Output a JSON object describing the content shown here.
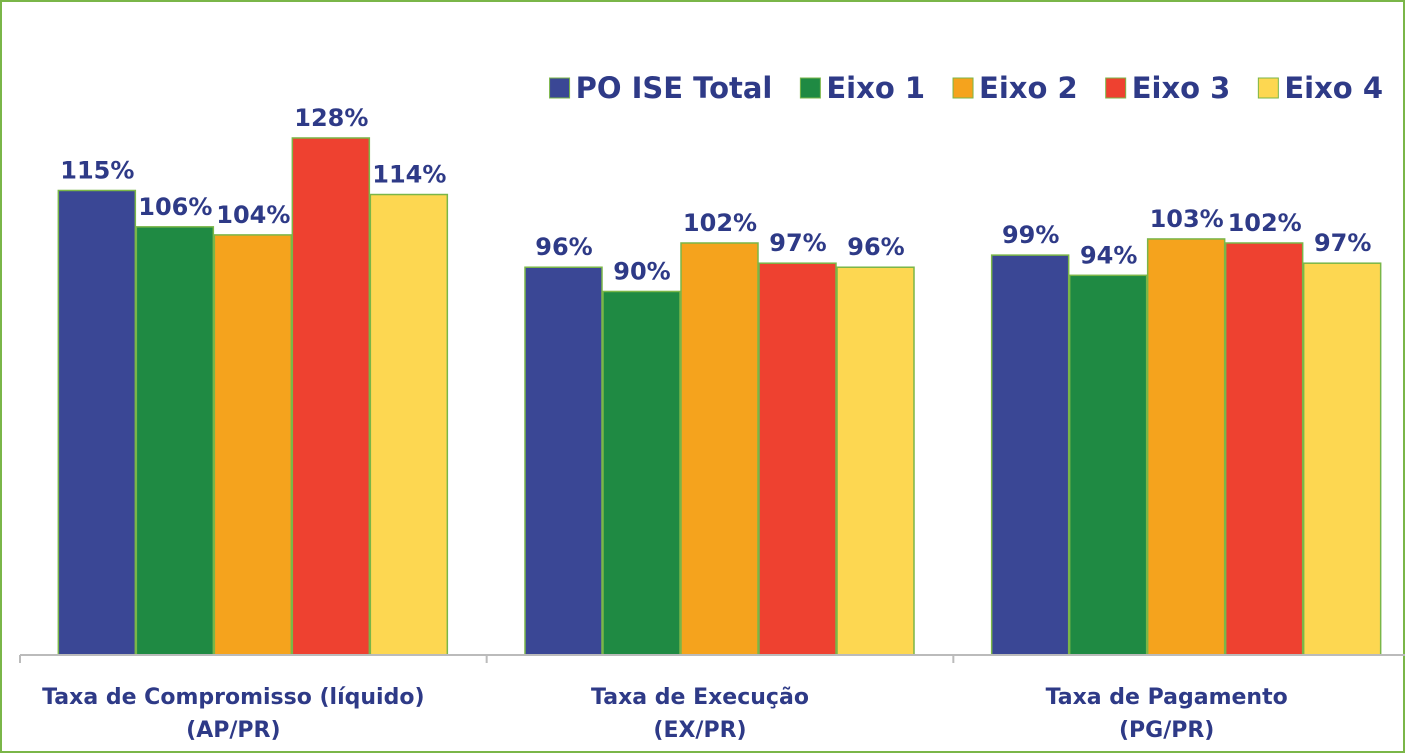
{
  "chart_data": {
    "type": "bar",
    "categories": [
      [
        "Taxa de Compromisso (líquido)",
        "(AP/PR)"
      ],
      [
        "Taxa de Execução",
        "(EX/PR)"
      ],
      [
        "Taxa de Pagamento",
        "(PG/PR)"
      ]
    ],
    "series": [
      {
        "name": "PO ISE Total",
        "color": "#3a4795",
        "values": [
          115,
          96,
          99
        ],
        "value_labels": [
          "115%",
          "96%",
          "99%"
        ]
      },
      {
        "name": "Eixo 1",
        "color": "#1f8a43",
        "values": [
          106,
          90,
          94
        ],
        "value_labels": [
          "106%",
          "90%",
          "94%"
        ]
      },
      {
        "name": "Eixo 2",
        "color": "#f5a31d",
        "values": [
          104,
          102,
          103
        ],
        "value_labels": [
          "104%",
          "102%",
          "103%"
        ]
      },
      {
        "name": "Eixo 3",
        "color": "#ee4130",
        "values": [
          128,
          97,
          102
        ],
        "value_labels": [
          "128%",
          "97%",
          "102%"
        ]
      },
      {
        "name": "Eixo 4",
        "color": "#fdd751",
        "values": [
          114,
          96,
          97
        ],
        "value_labels": [
          "114%",
          "96%",
          "97%"
        ]
      }
    ],
    "ylim": [
      0,
      140
    ],
    "legend": "top-right"
  }
}
